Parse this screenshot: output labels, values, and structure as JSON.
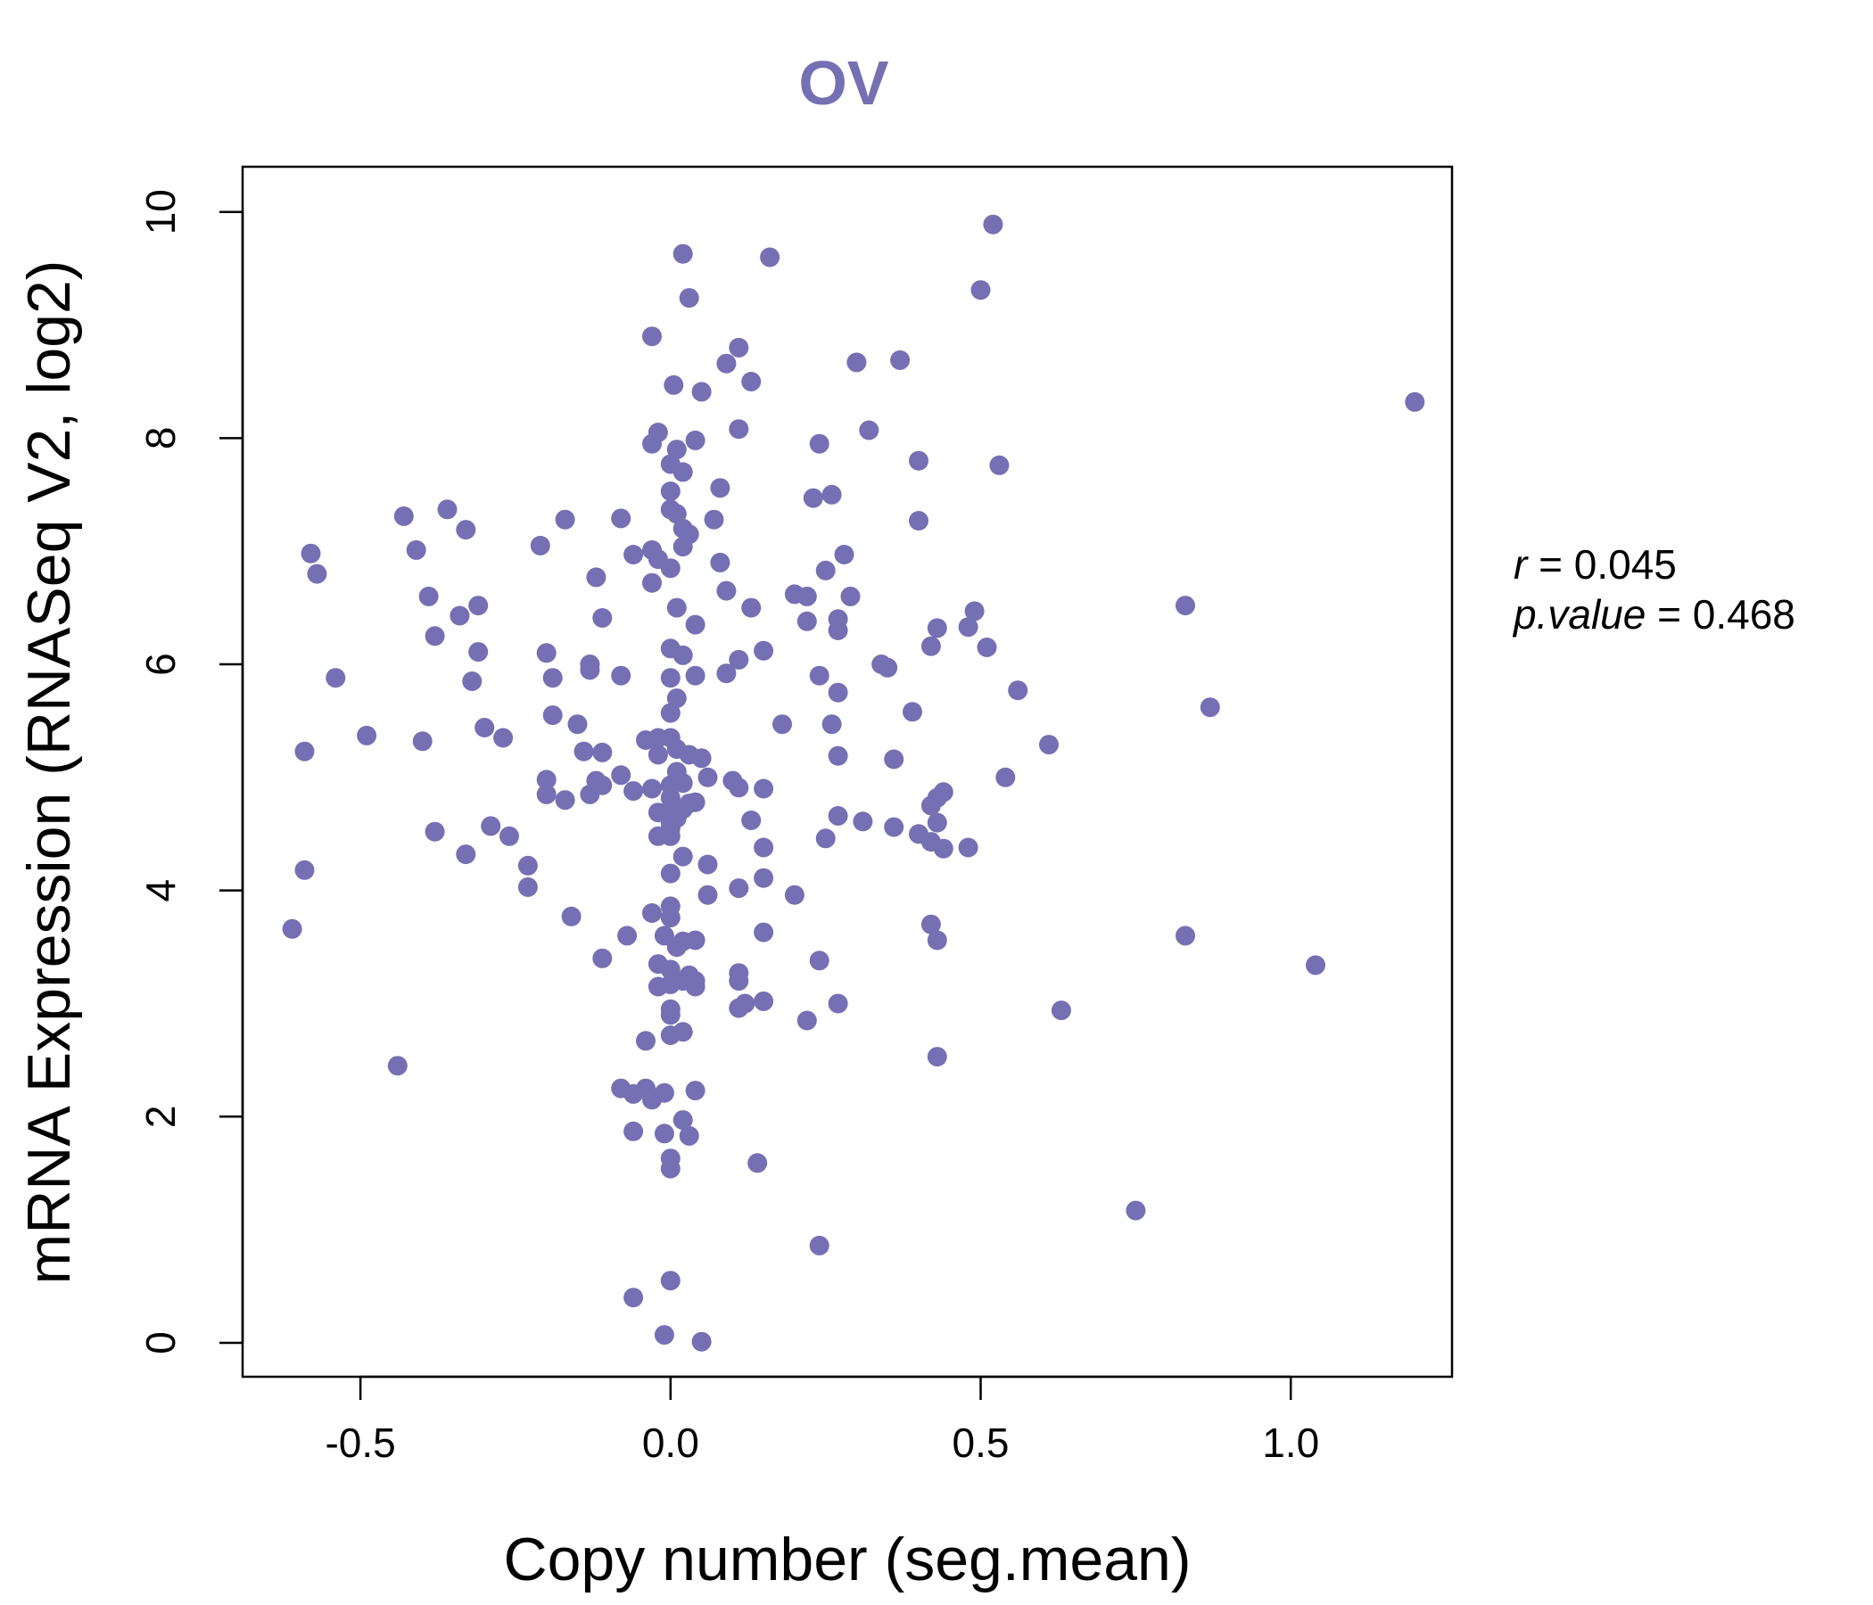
{
  "chart_data": {
    "type": "scatter",
    "title": "OV",
    "xlabel": "Copy number (seg.mean)",
    "ylabel": "mRNA Expression (RNASeq V2, log2)",
    "xlim": [
      -0.69,
      1.26
    ],
    "ylim": [
      -0.3,
      10.4
    ],
    "xticks": [
      -0.5,
      0.0,
      0.5,
      1.0
    ],
    "xtick_labels": [
      "-0.5",
      "0.0",
      "0.5",
      "1.0"
    ],
    "yticks": [
      0,
      2,
      4,
      6,
      8,
      10
    ],
    "ytick_labels": [
      "0",
      "2",
      "4",
      "6",
      "8",
      "10"
    ],
    "colors": {
      "points": "#7570b3",
      "title": "#7570b3",
      "axis": "#000000"
    },
    "stats": {
      "r_label": "r",
      "r_value": "0.045",
      "p_label": "p.value",
      "p_value": "0.468",
      "eq": "="
    },
    "points": [
      [
        0.02,
        9.63
      ],
      [
        0.16,
        9.6
      ],
      [
        0.52,
        9.89
      ],
      [
        0.5,
        9.31
      ],
      [
        0.03,
        9.24
      ],
      [
        -0.03,
        8.9
      ],
      [
        0.11,
        8.8
      ],
      [
        0.09,
        8.66
      ],
      [
        0.13,
        8.5
      ],
      [
        0.005,
        8.47
      ],
      [
        0.05,
        8.41
      ],
      [
        0.3,
        8.67
      ],
      [
        0.37,
        8.69
      ],
      [
        1.2,
        8.32
      ],
      [
        -0.02,
        8.05
      ],
      [
        -0.03,
        7.95
      ],
      [
        0.01,
        7.9
      ],
      [
        0.04,
        7.98
      ],
      [
        0.11,
        8.08
      ],
      [
        0.24,
        7.95
      ],
      [
        0.32,
        8.07
      ],
      [
        0.0,
        7.77
      ],
      [
        0.02,
        7.7
      ],
      [
        0.4,
        7.8
      ],
      [
        0.53,
        7.76
      ],
      [
        0.08,
        7.56
      ],
      [
        0.23,
        7.47
      ],
      [
        0.26,
        7.5
      ],
      [
        0.0,
        7.53
      ],
      [
        0.0,
        7.37
      ],
      [
        0.01,
        7.33
      ],
      [
        0.02,
        7.2
      ],
      [
        0.03,
        7.15
      ],
      [
        0.07,
        7.28
      ],
      [
        0.4,
        7.27
      ],
      [
        -0.43,
        7.31
      ],
      [
        -0.36,
        7.37
      ],
      [
        -0.33,
        7.19
      ],
      [
        -0.58,
        6.98
      ],
      [
        -0.57,
        6.8
      ],
      [
        -0.41,
        7.01
      ],
      [
        -0.21,
        7.05
      ],
      [
        -0.17,
        7.28
      ],
      [
        -0.08,
        7.29
      ],
      [
        -0.06,
        6.97
      ],
      [
        -0.03,
        7.01
      ],
      [
        -0.02,
        6.93
      ],
      [
        0.0,
        6.85
      ],
      [
        0.02,
        7.04
      ],
      [
        -0.03,
        6.72
      ],
      [
        0.08,
        6.9
      ],
      [
        0.28,
        6.97
      ],
      [
        0.25,
        6.83
      ],
      [
        -0.12,
        6.77
      ],
      [
        -0.39,
        6.6
      ],
      [
        -0.31,
        6.52
      ],
      [
        -0.34,
        6.43
      ],
      [
        -0.38,
        6.25
      ],
      [
        -0.11,
        6.41
      ],
      [
        0.01,
        6.5
      ],
      [
        0.04,
        6.35
      ],
      [
        0.09,
        6.65
      ],
      [
        0.13,
        6.5
      ],
      [
        0.2,
        6.62
      ],
      [
        0.22,
        6.6
      ],
      [
        0.22,
        6.38
      ],
      [
        0.27,
        6.4
      ],
      [
        0.27,
        6.3
      ],
      [
        0.29,
        6.6
      ],
      [
        0.83,
        6.52
      ],
      [
        0.49,
        6.47
      ],
      [
        0.48,
        6.33
      ],
      [
        0.43,
        6.32
      ],
      [
        0.42,
        6.16
      ],
      [
        0.51,
        6.15
      ],
      [
        -0.31,
        6.11
      ],
      [
        -0.2,
        6.1
      ],
      [
        -0.13,
        6.0
      ],
      [
        -0.13,
        5.95
      ],
      [
        -0.08,
        5.9
      ],
      [
        -0.19,
        5.88
      ],
      [
        -0.32,
        5.85
      ],
      [
        -0.54,
        5.88
      ],
      [
        0.0,
        6.14
      ],
      [
        0.02,
        6.08
      ],
      [
        0.04,
        5.9
      ],
      [
        0.0,
        5.88
      ],
      [
        0.01,
        5.7
      ],
      [
        0.0,
        5.57
      ],
      [
        0.09,
        5.92
      ],
      [
        0.11,
        6.04
      ],
      [
        0.15,
        6.12
      ],
      [
        0.34,
        6.0
      ],
      [
        0.35,
        5.97
      ],
      [
        0.24,
        5.9
      ],
      [
        0.27,
        5.75
      ],
      [
        0.56,
        5.77
      ],
      [
        0.87,
        5.62
      ],
      [
        0.39,
        5.58
      ],
      [
        0.18,
        5.47
      ],
      [
        0.26,
        5.47
      ],
      [
        -0.19,
        5.55
      ],
      [
        -0.15,
        5.47
      ],
      [
        -0.49,
        5.37
      ],
      [
        -0.59,
        5.23
      ],
      [
        -0.4,
        5.32
      ],
      [
        -0.3,
        5.44
      ],
      [
        -0.27,
        5.35
      ],
      [
        -0.14,
        5.23
      ],
      [
        -0.11,
        5.22
      ],
      [
        -0.04,
        5.33
      ],
      [
        -0.02,
        5.35
      ],
      [
        0.0,
        5.35
      ],
      [
        0.01,
        5.25
      ],
      [
        0.03,
        5.2
      ],
      [
        -0.02,
        5.2
      ],
      [
        0.05,
        5.17
      ],
      [
        0.27,
        5.19
      ],
      [
        0.36,
        5.16
      ],
      [
        0.61,
        5.29
      ],
      [
        0.54,
        5.0
      ],
      [
        0.44,
        4.87
      ],
      [
        0.43,
        4.82
      ],
      [
        -0.2,
        4.98
      ],
      [
        -0.12,
        4.97
      ],
      [
        -0.11,
        4.93
      ],
      [
        -0.08,
        5.02
      ],
      [
        -0.06,
        4.88
      ],
      [
        -0.03,
        4.9
      ],
      [
        0.0,
        4.93
      ],
      [
        0.01,
        5.05
      ],
      [
        0.02,
        4.95
      ],
      [
        0.06,
        5.0
      ],
      [
        0.1,
        4.97
      ],
      [
        0.11,
        4.91
      ],
      [
        0.15,
        4.9
      ],
      [
        -0.2,
        4.85
      ],
      [
        -0.17,
        4.8
      ],
      [
        -0.13,
        4.85
      ],
      [
        0.0,
        4.82
      ],
      [
        0.03,
        4.77
      ],
      [
        0.04,
        4.78
      ],
      [
        -0.02,
        4.69
      ],
      [
        0.0,
        4.7
      ],
      [
        0.01,
        4.64
      ],
      [
        0.02,
        4.72
      ],
      [
        0.0,
        4.6
      ],
      [
        0.0,
        4.55
      ],
      [
        0.0,
        4.48
      ],
      [
        -0.02,
        4.48
      ],
      [
        0.13,
        4.62
      ],
      [
        0.25,
        4.46
      ],
      [
        0.27,
        4.66
      ],
      [
        0.31,
        4.61
      ],
      [
        0.42,
        4.75
      ],
      [
        0.43,
        4.6
      ],
      [
        0.36,
        4.56
      ],
      [
        0.4,
        4.5
      ],
      [
        0.42,
        4.43
      ],
      [
        0.44,
        4.37
      ],
      [
        0.48,
        4.38
      ],
      [
        -0.38,
        4.52
      ],
      [
        -0.29,
        4.57
      ],
      [
        -0.26,
        4.48
      ],
      [
        -0.33,
        4.32
      ],
      [
        -0.23,
        4.22
      ],
      [
        -0.23,
        4.03
      ],
      [
        -0.59,
        4.18
      ],
      [
        0.02,
        4.3
      ],
      [
        0.0,
        4.15
      ],
      [
        0.06,
        4.23
      ],
      [
        0.15,
        4.38
      ],
      [
        0.15,
        4.11
      ],
      [
        0.06,
        3.96
      ],
      [
        0.11,
        4.02
      ],
      [
        0.2,
        3.96
      ],
      [
        0.0,
        3.86
      ],
      [
        0.0,
        3.76
      ],
      [
        -0.03,
        3.8
      ],
      [
        -0.16,
        3.77
      ],
      [
        -0.61,
        3.66
      ],
      [
        -0.07,
        3.6
      ],
      [
        -0.01,
        3.6
      ],
      [
        0.01,
        3.5
      ],
      [
        0.02,
        3.55
      ],
      [
        0.04,
        3.56
      ],
      [
        0.15,
        3.63
      ],
      [
        0.42,
        3.7
      ],
      [
        0.43,
        3.56
      ],
      [
        0.83,
        3.6
      ],
      [
        1.04,
        3.34
      ],
      [
        -0.11,
        3.4
      ],
      [
        -0.02,
        3.35
      ],
      [
        0.0,
        3.3
      ],
      [
        0.02,
        3.2
      ],
      [
        0.04,
        3.2
      ],
      [
        0.03,
        3.25
      ],
      [
        0.04,
        3.15
      ],
      [
        -0.02,
        3.15
      ],
      [
        0.0,
        3.17
      ],
      [
        0.0,
        2.95
      ],
      [
        0.0,
        2.9
      ],
      [
        0.11,
        3.27
      ],
      [
        0.11,
        3.2
      ],
      [
        0.24,
        3.38
      ],
      [
        0.12,
        3.0
      ],
      [
        0.11,
        2.96
      ],
      [
        0.15,
        3.02
      ],
      [
        0.27,
        3.0
      ],
      [
        0.63,
        2.94
      ],
      [
        0.22,
        2.85
      ],
      [
        0.0,
        2.72
      ],
      [
        0.02,
        2.75
      ],
      [
        -0.04,
        2.67
      ],
      [
        0.43,
        2.53
      ],
      [
        -0.44,
        2.45
      ],
      [
        -0.08,
        2.25
      ],
      [
        -0.06,
        2.2
      ],
      [
        -0.04,
        2.25
      ],
      [
        -0.03,
        2.15
      ],
      [
        0.04,
        2.23
      ],
      [
        -0.01,
        2.21
      ],
      [
        0.02,
        1.97
      ],
      [
        -0.06,
        1.87
      ],
      [
        -0.01,
        1.85
      ],
      [
        0.03,
        1.83
      ],
      [
        0.0,
        1.63
      ],
      [
        0.0,
        1.54
      ],
      [
        0.14,
        1.59
      ],
      [
        0.75,
        1.17
      ],
      [
        0.24,
        0.86
      ],
      [
        0.0,
        0.55
      ],
      [
        -0.06,
        0.4
      ],
      [
        -0.01,
        0.07
      ],
      [
        0.05,
        0.01
      ]
    ]
  }
}
